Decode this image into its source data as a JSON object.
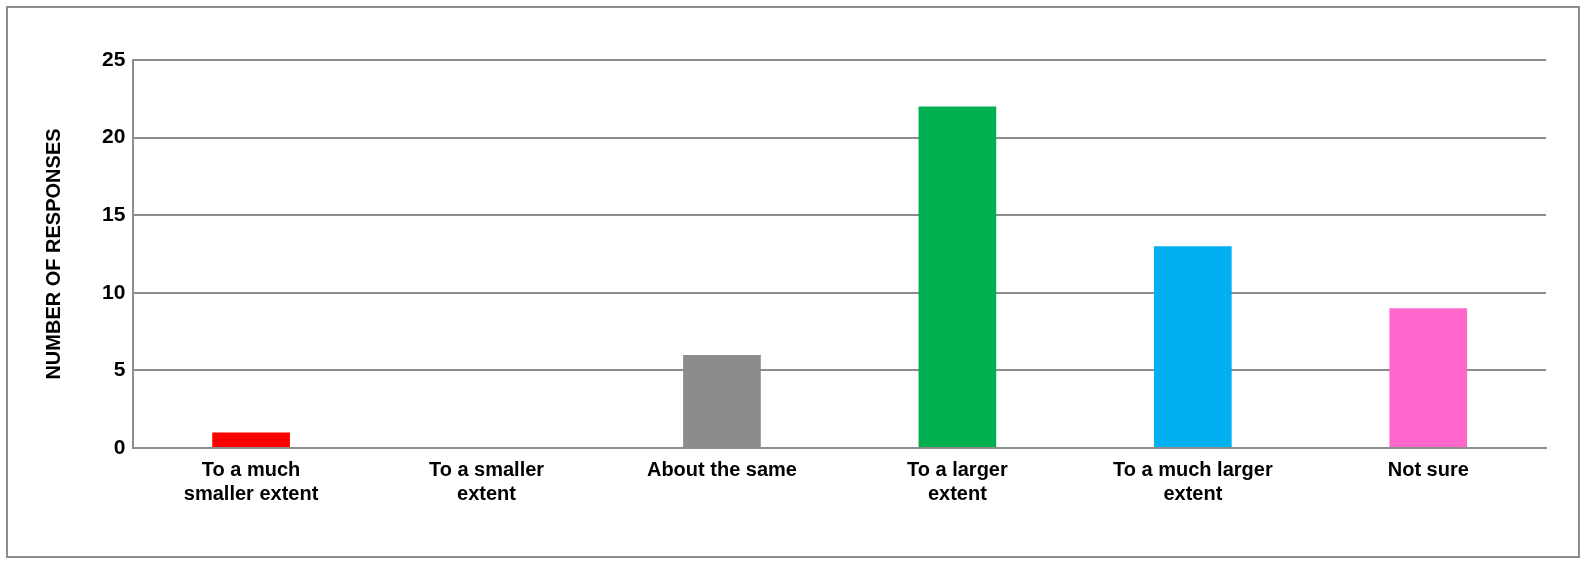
{
  "chart_data": {
    "type": "bar",
    "ylabel": "NUMBER OF RESPONSES",
    "categories": [
      "To a much smaller extent",
      "To a smaller extent",
      "About the same",
      "To a larger extent",
      "To a much larger extent",
      "Not sure"
    ],
    "values": [
      1,
      0,
      6,
      22,
      13,
      9
    ],
    "colors": [
      "#ff0000",
      "#8c8c8c",
      "#8c8c8c",
      "#00b050",
      "#00b0f0",
      "#ff66cc"
    ],
    "ylim": [
      0,
      25
    ],
    "yticks": [
      0,
      5,
      10,
      15,
      20,
      25
    ],
    "grid": "y",
    "legend": false
  }
}
